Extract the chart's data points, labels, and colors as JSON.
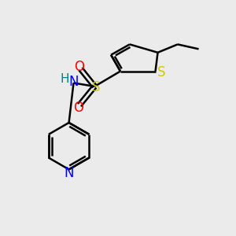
{
  "bg_color": "#ebebeb",
  "bond_color": "#000000",
  "S_thiophene_color": "#cccc00",
  "S_sulfonyl_color": "#cccc00",
  "O_color": "#ff0000",
  "N_color": "#0000ff",
  "H_color": "#008080",
  "line_width": 1.8,
  "figsize": [
    3.0,
    3.0
  ],
  "dpi": 100,
  "xlim": [
    0,
    10
  ],
  "ylim": [
    0,
    10
  ]
}
